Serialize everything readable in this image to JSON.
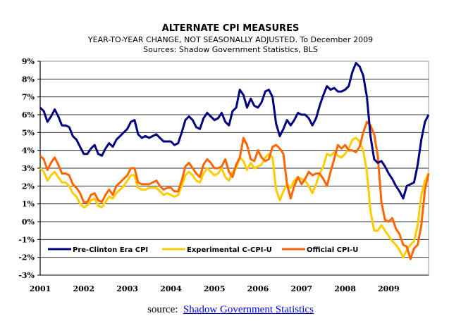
{
  "chart_data": {
    "type": "line",
    "title": "ALTERNATE CPI MEASURES",
    "subtitle": "YEAR-TO-YEAR CHANGE, NOT SEASONALLY ADJUSTED. To December 2009",
    "sources_line": "Sources: Shadow Government Statistics, BLS",
    "xlabel": "",
    "ylabel": "",
    "ylim": [
      -3,
      9
    ],
    "yticks": [
      "9%",
      "8%",
      "7%",
      "6%",
      "5%",
      "4%",
      "3%",
      "2%",
      "1%",
      "0%",
      "-1%",
      "-2%",
      "-3%"
    ],
    "ytick_values": [
      9,
      8,
      7,
      6,
      5,
      4,
      3,
      2,
      1,
      0,
      -1,
      -2,
      -3
    ],
    "xticks": [
      "2001",
      "2002",
      "2003",
      "2004",
      "2005",
      "2006",
      "2007",
      "2008",
      "2009"
    ],
    "x_start": "2001-01",
    "x_end": "2009-12",
    "frequency": "monthly",
    "grid": true,
    "legend_position": "bottom-inside",
    "series": [
      {
        "name": "Pre-Clinton Era CPI",
        "color": "#000080",
        "values": [
          6.4,
          6.2,
          5.6,
          5.9,
          6.3,
          5.9,
          5.4,
          5.4,
          5.3,
          4.8,
          4.6,
          4.2,
          3.8,
          3.8,
          4.1,
          4.3,
          3.8,
          3.7,
          4.1,
          4.4,
          4.2,
          4.6,
          4.8,
          5.0,
          5.2,
          5.6,
          5.7,
          4.9,
          4.7,
          4.8,
          4.7,
          4.8,
          4.9,
          4.7,
          4.5,
          4.5,
          4.5,
          4.3,
          4.4,
          5.0,
          5.7,
          5.9,
          5.7,
          5.3,
          5.2,
          5.8,
          6.1,
          5.9,
          5.7,
          5.8,
          6.1,
          5.6,
          5.4,
          6.2,
          6.4,
          7.4,
          7.1,
          6.4,
          6.9,
          6.5,
          6.4,
          6.7,
          7.3,
          7.4,
          7.0,
          5.5,
          4.8,
          5.2,
          5.7,
          5.4,
          5.7,
          6.1,
          6.0,
          6.0,
          5.8,
          5.4,
          5.8,
          6.5,
          7.1,
          7.6,
          7.4,
          7.5,
          7.3,
          7.3,
          7.4,
          7.6,
          8.4,
          8.9,
          8.7,
          8.2,
          7.0,
          4.8,
          3.5,
          3.3,
          3.4,
          3.1,
          2.7,
          2.4,
          2.0,
          1.7,
          1.3,
          2.0,
          2.1,
          2.2,
          3.2,
          4.6,
          5.6,
          6.0
        ]
      },
      {
        "name": "Experimental C-CPI-U",
        "color": "#ffcc00",
        "values": [
          3.0,
          2.8,
          2.3,
          2.6,
          2.8,
          2.5,
          2.2,
          2.2,
          2.0,
          1.6,
          1.4,
          1.0,
          0.8,
          0.9,
          1.2,
          1.3,
          0.9,
          0.8,
          1.1,
          1.4,
          1.3,
          1.6,
          1.8,
          2.0,
          2.3,
          2.6,
          2.6,
          1.9,
          1.8,
          1.8,
          1.9,
          1.9,
          1.9,
          1.7,
          1.5,
          1.6,
          1.5,
          1.4,
          1.5,
          2.0,
          2.6,
          2.8,
          2.6,
          2.3,
          2.2,
          2.7,
          3.0,
          2.8,
          2.6,
          2.7,
          3.0,
          2.5,
          2.3,
          2.8,
          3.0,
          3.6,
          3.4,
          2.9,
          3.3,
          3.0,
          3.1,
          3.2,
          3.6,
          3.8,
          3.6,
          1.8,
          1.2,
          1.7,
          2.1,
          1.9,
          2.3,
          2.5,
          2.4,
          2.3,
          2.0,
          1.6,
          2.1,
          2.7,
          3.1,
          3.8,
          3.7,
          3.9,
          3.7,
          3.6,
          3.8,
          4.1,
          4.6,
          4.7,
          4.5,
          4.0,
          2.8,
          0.6,
          -0.5,
          -0.5,
          -0.2,
          -0.5,
          -0.8,
          -1.1,
          -1.3,
          -1.6,
          -2.0,
          -1.6,
          -1.3,
          -1.1,
          -0.2,
          1.5,
          2.3,
          2.7
        ]
      },
      {
        "name": "Official CPI-U",
        "color": "#ff6600",
        "values": [
          3.7,
          3.5,
          2.9,
          3.3,
          3.6,
          3.2,
          2.7,
          2.7,
          2.6,
          2.1,
          1.9,
          1.6,
          1.1,
          1.1,
          1.5,
          1.6,
          1.2,
          1.1,
          1.5,
          1.8,
          1.5,
          2.0,
          2.2,
          2.4,
          2.6,
          3.0,
          3.0,
          2.2,
          2.1,
          2.1,
          2.1,
          2.2,
          2.3,
          2.0,
          1.8,
          1.9,
          1.9,
          1.7,
          1.7,
          2.3,
          3.1,
          3.3,
          3.0,
          2.7,
          2.5,
          3.2,
          3.5,
          3.3,
          3.0,
          3.0,
          3.1,
          3.5,
          2.8,
          2.5,
          3.2,
          3.6,
          4.7,
          4.3,
          3.5,
          3.4,
          4.0,
          3.6,
          3.4,
          3.5,
          4.2,
          4.3,
          4.1,
          3.8,
          2.1,
          1.3,
          2.0,
          2.5,
          2.1,
          2.4,
          2.8,
          2.6,
          2.7,
          2.7,
          2.4,
          2.0,
          2.8,
          3.5,
          4.3,
          4.1,
          4.3,
          4.0,
          4.0,
          3.9,
          4.2,
          5.0,
          5.6,
          5.4,
          4.9,
          3.7,
          1.1,
          0.1,
          0.0,
          0.2,
          -0.4,
          -0.7,
          -1.3,
          -1.4,
          -2.1,
          -1.5,
          -1.3,
          -0.2,
          1.8,
          2.7
        ]
      }
    ]
  },
  "footer": {
    "source_prefix": "source:",
    "source_link": "Shadow Government Statistics"
  }
}
